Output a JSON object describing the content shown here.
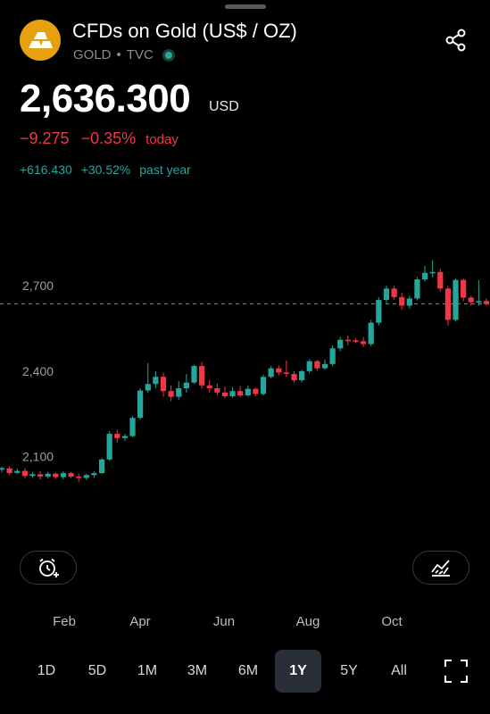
{
  "header": {
    "title": "CFDs on Gold (US$ / OZ)",
    "symbol": "GOLD",
    "separator": "•",
    "exchange": "TVC",
    "logo_icon": "gold-bars-icon",
    "share_icon": "share-icon"
  },
  "quote": {
    "price": "2,636.300",
    "currency": "USD",
    "change": "−9.275",
    "change_pct": "−0.35%",
    "change_label": "today",
    "year_change": "+616.430",
    "year_change_pct": "+30.52%",
    "year_label": "past year"
  },
  "colors": {
    "up": "#26a69a",
    "down": "#f23645",
    "logo": "#e6a20e"
  },
  "chart_data": {
    "type": "candlestick",
    "y_ticks": [
      "2,700",
      "2,400",
      "2,100"
    ],
    "y_tick_values": [
      2700,
      2400,
      2100
    ],
    "ylim": [
      1870,
      2810
    ],
    "last_price_line": 2636.3,
    "x_labels": [
      "Feb",
      "Apr",
      "Jun",
      "Aug",
      "Oct"
    ],
    "candles": [
      [
        2054,
        2060,
        2044,
        2065
      ],
      [
        2058,
        2042,
        2035,
        2066
      ],
      [
        2043,
        2050,
        2038,
        2058
      ],
      [
        2050,
        2032,
        2025,
        2060
      ],
      [
        2032,
        2038,
        2026,
        2046
      ],
      [
        2038,
        2030,
        2020,
        2048
      ],
      [
        2030,
        2040,
        2024,
        2046
      ],
      [
        2040,
        2028,
        2022,
        2044
      ],
      [
        2028,
        2042,
        2020,
        2048
      ],
      [
        2042,
        2030,
        2024,
        2046
      ],
      [
        2030,
        2025,
        2010,
        2040
      ],
      [
        2025,
        2035,
        2018,
        2040
      ],
      [
        2035,
        2042,
        2025,
        2048
      ],
      [
        2042,
        2090,
        2040,
        2095
      ],
      [
        2090,
        2180,
        2085,
        2190
      ],
      [
        2180,
        2165,
        2150,
        2195
      ],
      [
        2165,
        2172,
        2155,
        2180
      ],
      [
        2172,
        2236,
        2168,
        2242
      ],
      [
        2236,
        2332,
        2230,
        2340
      ],
      [
        2332,
        2355,
        2325,
        2428
      ],
      [
        2355,
        2380,
        2340,
        2400
      ],
      [
        2380,
        2330,
        2310,
        2395
      ],
      [
        2330,
        2310,
        2295,
        2350
      ],
      [
        2310,
        2340,
        2300,
        2365
      ],
      [
        2340,
        2360,
        2325,
        2390
      ],
      [
        2360,
        2418,
        2355,
        2422
      ],
      [
        2418,
        2350,
        2338,
        2432
      ],
      [
        2350,
        2340,
        2325,
        2368
      ],
      [
        2340,
        2325,
        2315,
        2356
      ],
      [
        2325,
        2312,
        2305,
        2345
      ],
      [
        2312,
        2330,
        2306,
        2345
      ],
      [
        2330,
        2315,
        2308,
        2348
      ],
      [
        2315,
        2338,
        2310,
        2350
      ],
      [
        2338,
        2320,
        2312,
        2342
      ],
      [
        2320,
        2380,
        2315,
        2388
      ],
      [
        2380,
        2410,
        2375,
        2418
      ],
      [
        2410,
        2395,
        2385,
        2420
      ],
      [
        2395,
        2390,
        2380,
        2438
      ],
      [
        2390,
        2368,
        2360,
        2400
      ],
      [
        2368,
        2400,
        2360,
        2405
      ],
      [
        2400,
        2435,
        2392,
        2442
      ],
      [
        2435,
        2410,
        2402,
        2440
      ],
      [
        2410,
        2425,
        2405,
        2440
      ],
      [
        2425,
        2480,
        2418,
        2490
      ],
      [
        2480,
        2510,
        2470,
        2520
      ],
      [
        2510,
        2508,
        2490,
        2525
      ],
      [
        2508,
        2505,
        2498,
        2515
      ],
      [
        2505,
        2495,
        2485,
        2520
      ],
      [
        2495,
        2570,
        2488,
        2580
      ],
      [
        2570,
        2650,
        2560,
        2660
      ],
      [
        2650,
        2690,
        2640,
        2700
      ],
      [
        2690,
        2660,
        2650,
        2700
      ],
      [
        2660,
        2630,
        2615,
        2675
      ],
      [
        2630,
        2655,
        2620,
        2665
      ],
      [
        2655,
        2722,
        2648,
        2730
      ],
      [
        2722,
        2745,
        2715,
        2770
      ],
      [
        2745,
        2748,
        2730,
        2790
      ],
      [
        2748,
        2690,
        2680,
        2760
      ],
      [
        2690,
        2580,
        2560,
        2700
      ],
      [
        2580,
        2720,
        2575,
        2725
      ],
      [
        2720,
        2658,
        2645,
        2725
      ],
      [
        2658,
        2642,
        2630,
        2665
      ],
      [
        2642,
        2646,
        2630,
        2720
      ],
      [
        2646,
        2636,
        2630,
        2655
      ]
    ]
  },
  "buttons": {
    "alert_icon": "alarm-clock-plus-icon",
    "indicator_icon": "area-chart-icon",
    "fullscreen_icon": "fullscreen-icon"
  },
  "ranges": [
    "1D",
    "5D",
    "1M",
    "3M",
    "6M",
    "1Y",
    "5Y",
    "All"
  ],
  "active_range": "1Y"
}
